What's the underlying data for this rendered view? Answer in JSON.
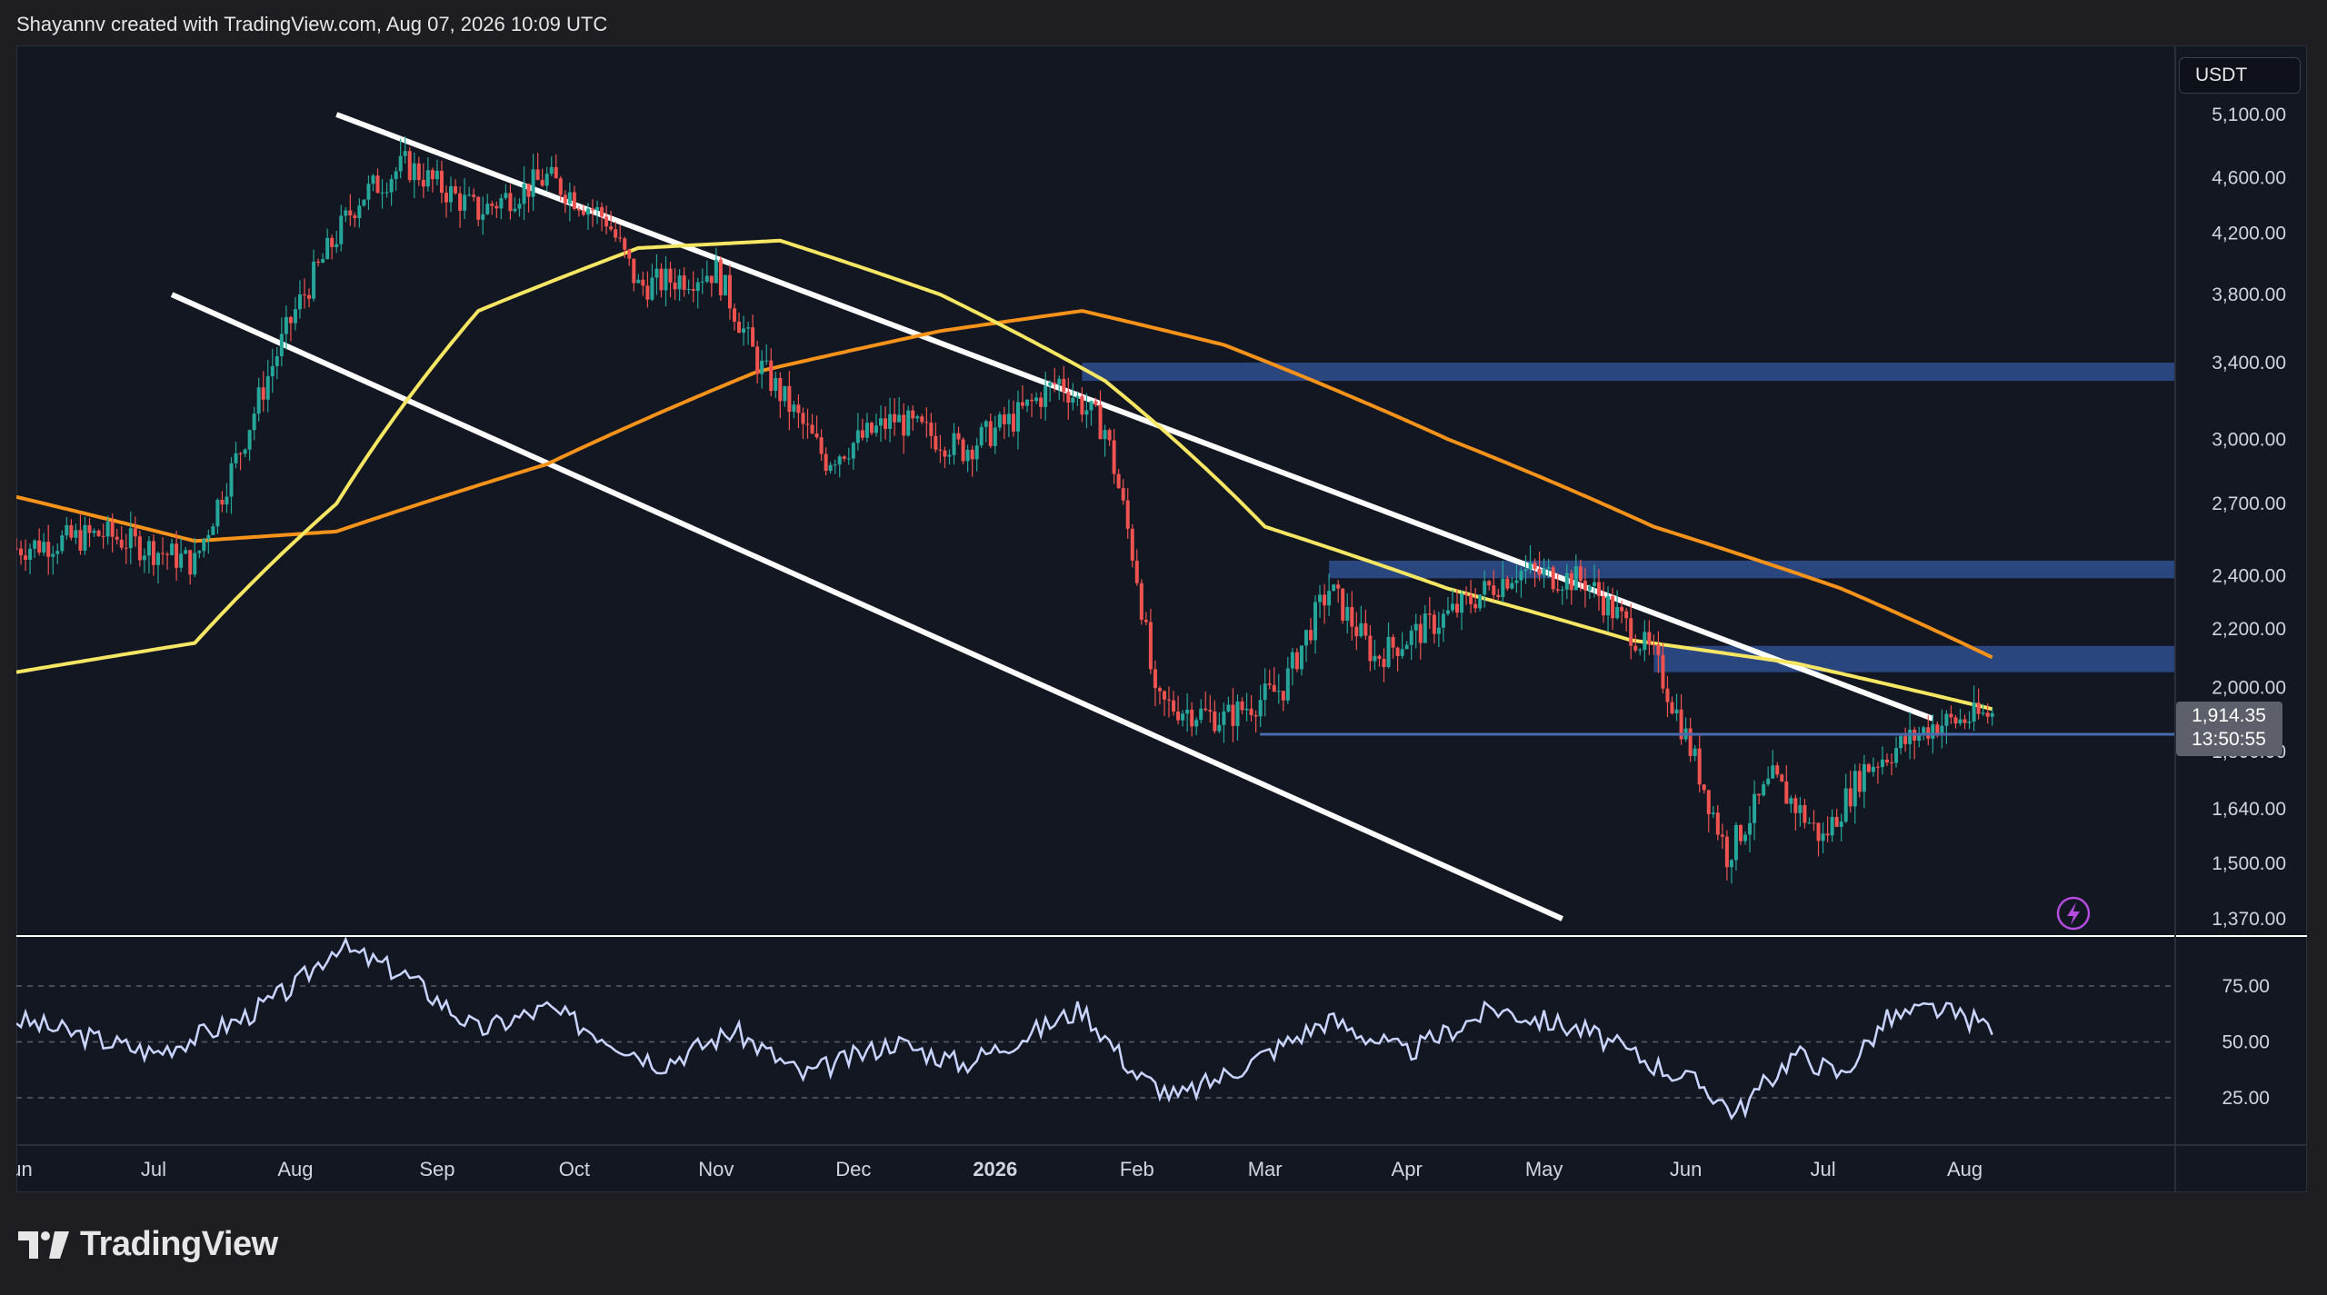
{
  "header": {
    "attribution": "Shayannv created with TradingView.com, Aug 07, 2026 10:09 UTC"
  },
  "price_pane": {
    "currency": "USDT",
    "axis_ticks": [
      "5,100.00",
      "4,600.00",
      "4,200.00",
      "3,800.00",
      "3,400.00",
      "3,000.00",
      "2,700.00",
      "2,400.00",
      "2,200.00",
      "2,000.00",
      "1,800.00",
      "1,640.00",
      "1,500.00",
      "1,370.00"
    ],
    "current_price": "1,914.35",
    "countdown": "13:50:55"
  },
  "rsi_pane": {
    "axis_ticks": [
      "75.00",
      "50.00",
      "25.00"
    ]
  },
  "time_axis": {
    "labels": [
      "Jun",
      "Jul",
      "Aug",
      "Sep",
      "Oct",
      "Nov",
      "Dec",
      "2026",
      "Feb",
      "Mar",
      "Apr",
      "May",
      "Jun",
      "Jul",
      "Aug"
    ]
  },
  "footer": {
    "brand": "TradingView"
  },
  "colors": {
    "background": "#131722",
    "up": "#26a69a",
    "down": "#ef5350",
    "ema_fast": "#f5e663",
    "ema_slow": "#f7931a",
    "zones": "#2f4f8f",
    "channel": "#ffffff",
    "rsi": "#c9d5ff",
    "bolt_icon": "#b44ce0"
  },
  "chart_data": {
    "type": "candlestick",
    "symbol_quote": "USDT",
    "x_range": [
      "2025-06",
      "2026-08"
    ],
    "y_scale": "log",
    "ylim": [
      1370,
      5100
    ],
    "price_path": [
      [
        "2025-06-01",
        2510
      ],
      [
        "2025-06-20",
        2570
      ],
      [
        "2025-07-10",
        2450
      ],
      [
        "2025-07-20",
        2950
      ],
      [
        "2025-08-01",
        3700
      ],
      [
        "2025-08-15",
        4450
      ],
      [
        "2025-08-25",
        4700
      ],
      [
        "2025-09-10",
        4350
      ],
      [
        "2025-09-25",
        4600
      ],
      [
        "2025-10-08",
        4300
      ],
      [
        "2025-10-15",
        3850
      ],
      [
        "2025-11-01",
        3950
      ],
      [
        "2025-11-10",
        3400
      ],
      [
        "2025-11-25",
        2900
      ],
      [
        "2025-12-10",
        3100
      ],
      [
        "2025-12-25",
        2950
      ],
      [
        "2026-01-05",
        3100
      ],
      [
        "2026-01-15",
        3300
      ],
      [
        "2026-01-25",
        3050
      ],
      [
        "2026-02-01",
        2400
      ],
      [
        "2026-02-05",
        1950
      ],
      [
        "2026-02-20",
        1900
      ],
      [
        "2026-03-05",
        2000
      ],
      [
        "2026-03-15",
        2350
      ],
      [
        "2026-03-25",
        2100
      ],
      [
        "2026-04-10",
        2250
      ],
      [
        "2026-04-25",
        2420
      ],
      [
        "2026-05-10",
        2380
      ],
      [
        "2026-05-25",
        2100
      ],
      [
        "2026-06-05",
        1700
      ],
      [
        "2026-06-10",
        1520
      ],
      [
        "2026-06-20",
        1720
      ],
      [
        "2026-07-01",
        1560
      ],
      [
        "2026-07-10",
        1750
      ],
      [
        "2026-07-25",
        1880
      ],
      [
        "2026-08-07",
        1914.35
      ]
    ],
    "ema_fast_path": [
      [
        "2025-06-01",
        2050
      ],
      [
        "2025-07-10",
        2150
      ],
      [
        "2025-08-10",
        2700
      ],
      [
        "2025-09-10",
        3700
      ],
      [
        "2025-10-15",
        4100
      ],
      [
        "2025-11-15",
        4150
      ],
      [
        "2025-12-20",
        3800
      ],
      [
        "2026-01-25",
        3300
      ],
      [
        "2026-03-01",
        2600
      ],
      [
        "2026-04-10",
        2350
      ],
      [
        "2026-05-20",
        2160
      ],
      [
        "2026-06-25",
        2080
      ],
      [
        "2026-08-07",
        1930
      ]
    ],
    "ema_slow_path": [
      [
        "2025-06-01",
        2730
      ],
      [
        "2025-07-10",
        2540
      ],
      [
        "2025-08-10",
        2580
      ],
      [
        "2025-09-25",
        2880
      ],
      [
        "2025-11-10",
        3350
      ],
      [
        "2025-12-20",
        3580
      ],
      [
        "2026-01-20",
        3700
      ],
      [
        "2026-02-20",
        3500
      ],
      [
        "2026-04-10",
        3000
      ],
      [
        "2026-05-25",
        2600
      ],
      [
        "2026-07-05",
        2350
      ],
      [
        "2026-08-07",
        2100
      ]
    ],
    "channel_upper": [
      [
        "2025-08-10",
        5100
      ],
      [
        "2026-07-25",
        1900
      ]
    ],
    "channel_lower": [
      [
        "2025-07-05",
        3800
      ],
      [
        "2026-05-05",
        1370
      ]
    ],
    "zones": [
      {
        "from": "2026-01-20",
        "low": 3300,
        "high": 3400
      },
      {
        "from": "2026-03-15",
        "low": 2390,
        "high": 2460
      },
      {
        "from": "2026-05-25",
        "low": 2050,
        "high": 2140
      }
    ],
    "rsi": {
      "levels": [
        75,
        50,
        25
      ],
      "path": [
        [
          "2025-06-01",
          60
        ],
        [
          "2025-07-01",
          45
        ],
        [
          "2025-07-20",
          60
        ],
        [
          "2025-08-01",
          75
        ],
        [
          "2025-08-10",
          93
        ],
        [
          "2025-08-25",
          80
        ],
        [
          "2025-09-10",
          55
        ],
        [
          "2025-09-25",
          65
        ],
        [
          "2025-10-10",
          50
        ],
        [
          "2025-10-20",
          40
        ],
        [
          "2025-11-05",
          55
        ],
        [
          "2025-11-20",
          35
        ],
        [
          "2025-12-10",
          50
        ],
        [
          "2025-12-25",
          40
        ],
        [
          "2026-01-10",
          55
        ],
        [
          "2026-01-20",
          65
        ],
        [
          "2026-02-01",
          35
        ],
        [
          "2026-02-10",
          25
        ],
        [
          "2026-02-25",
          40
        ],
        [
          "2026-03-15",
          60
        ],
        [
          "2026-04-01",
          45
        ],
        [
          "2026-04-20",
          65
        ],
        [
          "2026-05-10",
          55
        ],
        [
          "2026-05-25",
          40
        ],
        [
          "2026-06-05",
          30
        ],
        [
          "2026-06-12",
          18
        ],
        [
          "2026-06-25",
          45
        ],
        [
          "2026-07-05",
          35
        ],
        [
          "2026-07-15",
          60
        ],
        [
          "2026-07-25",
          65
        ],
        [
          "2026-08-07",
          57
        ]
      ]
    }
  }
}
